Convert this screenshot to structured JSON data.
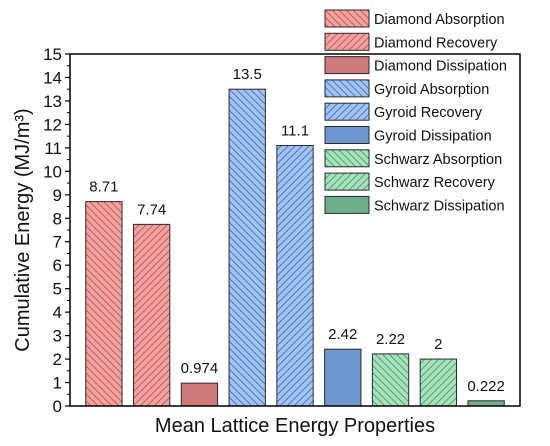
{
  "chart_data": {
    "type": "bar",
    "xlabel": "Mean Lattice Energy Properties",
    "ylabel": "Cumulative Energy (MJ/m³)",
    "ylim": [
      0,
      15
    ],
    "yticks": [
      0,
      1,
      2,
      3,
      4,
      5,
      6,
      7,
      8,
      9,
      10,
      11,
      12,
      13,
      14,
      15
    ],
    "legend_position": "top-right",
    "grid": false,
    "series": [
      {
        "name": "Diamond Absorption",
        "value": 8.71,
        "label": "8.71",
        "color": "#f4a3a3",
        "edge": "#c14c4c",
        "pattern": "back-diagonal"
      },
      {
        "name": "Diamond Recovery",
        "value": 7.74,
        "label": "7.74",
        "color": "#f4a3a3",
        "edge": "#c14c4c",
        "pattern": "forward-diagonal"
      },
      {
        "name": "Diamond Dissipation",
        "value": 0.974,
        "label": "0.974",
        "color": "#cf7a7a",
        "edge": "#8a3f3f",
        "pattern": "solid"
      },
      {
        "name": "Gyroid Absorption",
        "value": 13.5,
        "label": "13.5",
        "color": "#a4c2f4",
        "edge": "#3a6bc2",
        "pattern": "back-diagonal"
      },
      {
        "name": "Gyroid Recovery",
        "value": 11.1,
        "label": "11.1",
        "color": "#a4c2f4",
        "edge": "#3a6bc2",
        "pattern": "forward-diagonal"
      },
      {
        "name": "Gyroid Dissipation",
        "value": 2.42,
        "label": "2.42",
        "color": "#6f97cf",
        "edge": "#3a5d8f",
        "pattern": "solid"
      },
      {
        "name": "Schwarz Absorption",
        "value": 2.22,
        "label": "2.22",
        "color": "#a8e2bd",
        "edge": "#3f9a64",
        "pattern": "back-diagonal"
      },
      {
        "name": "Schwarz Recovery",
        "value": 2,
        "label": "2",
        "color": "#a8e2bd",
        "edge": "#3f9a64",
        "pattern": "forward-diagonal"
      },
      {
        "name": "Schwarz Dissipation",
        "value": 0.222,
        "label": "0.222",
        "color": "#6fae8b",
        "edge": "#3e7a58",
        "pattern": "solid"
      }
    ]
  }
}
